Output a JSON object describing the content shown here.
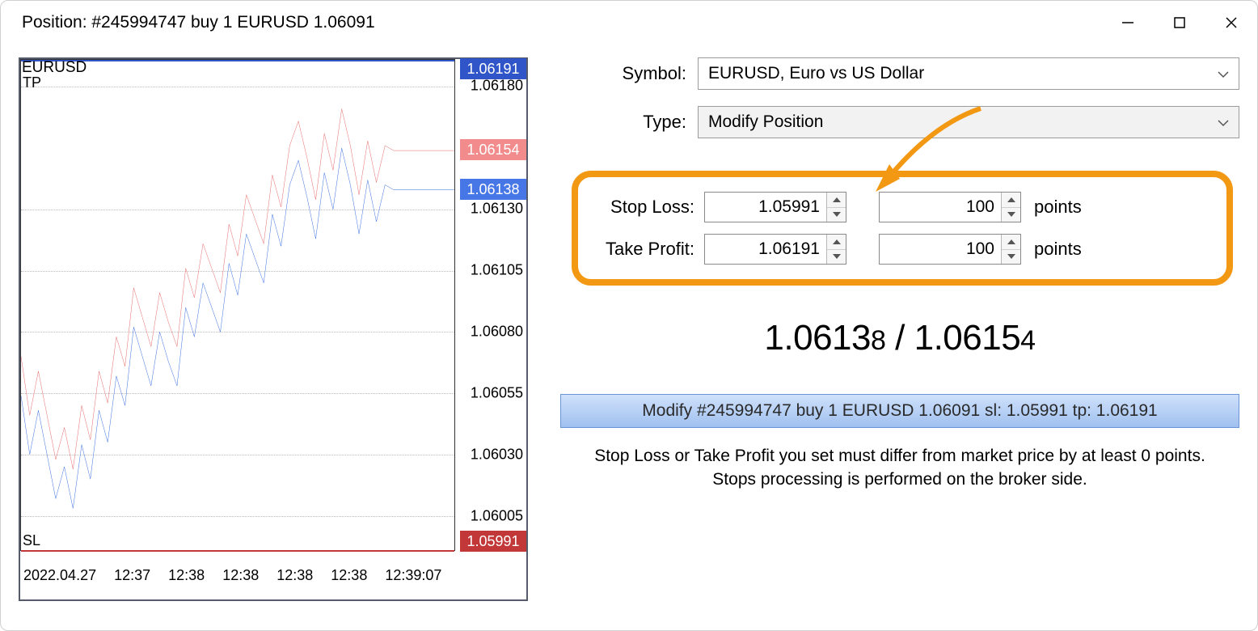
{
  "window": {
    "title": "Position: #245994747 buy 1 EURUSD 1.06091"
  },
  "chart": {
    "symbol": "EURUSD",
    "tp_label": "TP",
    "sl_label": "SL",
    "tp_value": "1.06191",
    "sl_value": "1.05991",
    "bid_value": "1.06138",
    "ask_value": "1.06154",
    "tp_color": "#2f55c9",
    "sl_color": "#c23838",
    "bid_color": "#4776e6",
    "ask_color": "#f28c8c",
    "grid_color": "#bcbcbc",
    "border_color": "#333333",
    "background_color": "#ffffff",
    "y_min": 1.05991,
    "y_max": 1.06191,
    "y_ticks": [
      1.0618,
      1.0613,
      1.06105,
      1.0608,
      1.06055,
      1.0603,
      1.06005
    ],
    "y_tick_labels": [
      "1.06180",
      "1.06130",
      "1.06105",
      "1.06080",
      "1.06055",
      "1.06030",
      "1.06005"
    ],
    "x_labels": [
      "2022.04.27",
      "12:37",
      "12:38",
      "12:38",
      "12:38",
      "12:38",
      "12:39:07"
    ],
    "bid_series": [
      [
        0,
        1.06054
      ],
      [
        0.02,
        1.0603
      ],
      [
        0.04,
        1.06048
      ],
      [
        0.06,
        1.0603
      ],
      [
        0.08,
        1.06012
      ],
      [
        0.1,
        1.06025
      ],
      [
        0.12,
        1.06008
      ],
      [
        0.14,
        1.06034
      ],
      [
        0.16,
        1.0602
      ],
      [
        0.18,
        1.06048
      ],
      [
        0.2,
        1.06035
      ],
      [
        0.22,
        1.06062
      ],
      [
        0.24,
        1.0605
      ],
      [
        0.26,
        1.06082
      ],
      [
        0.28,
        1.0607
      ],
      [
        0.3,
        1.06058
      ],
      [
        0.32,
        1.0608
      ],
      [
        0.34,
        1.06068
      ],
      [
        0.36,
        1.06058
      ],
      [
        0.38,
        1.0609
      ],
      [
        0.4,
        1.06078
      ],
      [
        0.42,
        1.061
      ],
      [
        0.44,
        1.0609
      ],
      [
        0.46,
        1.0608
      ],
      [
        0.48,
        1.06108
      ],
      [
        0.5,
        1.06095
      ],
      [
        0.52,
        1.0612
      ],
      [
        0.54,
        1.0611
      ],
      [
        0.56,
        1.061
      ],
      [
        0.58,
        1.06128
      ],
      [
        0.6,
        1.06115
      ],
      [
        0.62,
        1.0614
      ],
      [
        0.64,
        1.0615
      ],
      [
        0.66,
        1.06135
      ],
      [
        0.68,
        1.06118
      ],
      [
        0.7,
        1.06145
      ],
      [
        0.72,
        1.0613
      ],
      [
        0.74,
        1.06155
      ],
      [
        0.76,
        1.0614
      ],
      [
        0.78,
        1.0612
      ],
      [
        0.8,
        1.06142
      ],
      [
        0.82,
        1.06125
      ],
      [
        0.84,
        1.0614
      ],
      [
        0.86,
        1.06138
      ],
      [
        1.0,
        1.06138
      ]
    ],
    "ask_series": [
      [
        0,
        1.0607
      ],
      [
        0.02,
        1.06046
      ],
      [
        0.04,
        1.06064
      ],
      [
        0.06,
        1.06046
      ],
      [
        0.08,
        1.06028
      ],
      [
        0.1,
        1.06041
      ],
      [
        0.12,
        1.06024
      ],
      [
        0.14,
        1.0605
      ],
      [
        0.16,
        1.06036
      ],
      [
        0.18,
        1.06064
      ],
      [
        0.2,
        1.06051
      ],
      [
        0.22,
        1.06078
      ],
      [
        0.24,
        1.06066
      ],
      [
        0.26,
        1.06098
      ],
      [
        0.28,
        1.06086
      ],
      [
        0.3,
        1.06074
      ],
      [
        0.32,
        1.06096
      ],
      [
        0.34,
        1.06084
      ],
      [
        0.36,
        1.06074
      ],
      [
        0.38,
        1.06106
      ],
      [
        0.4,
        1.06094
      ],
      [
        0.42,
        1.06116
      ],
      [
        0.44,
        1.06106
      ],
      [
        0.46,
        1.06096
      ],
      [
        0.48,
        1.06124
      ],
      [
        0.5,
        1.06111
      ],
      [
        0.52,
        1.06136
      ],
      [
        0.54,
        1.06126
      ],
      [
        0.56,
        1.06116
      ],
      [
        0.58,
        1.06144
      ],
      [
        0.6,
        1.06131
      ],
      [
        0.62,
        1.06156
      ],
      [
        0.64,
        1.06166
      ],
      [
        0.66,
        1.06151
      ],
      [
        0.68,
        1.06134
      ],
      [
        0.7,
        1.06161
      ],
      [
        0.72,
        1.06146
      ],
      [
        0.74,
        1.06171
      ],
      [
        0.76,
        1.06156
      ],
      [
        0.78,
        1.06136
      ],
      [
        0.8,
        1.06158
      ],
      [
        0.82,
        1.06141
      ],
      [
        0.84,
        1.06156
      ],
      [
        0.86,
        1.06154
      ],
      [
        1.0,
        1.06154
      ]
    ]
  },
  "form": {
    "symbol_label": "Symbol:",
    "symbol_value": "EURUSD, Euro vs US Dollar",
    "type_label": "Type:",
    "type_value": "Modify Position",
    "sl_label": "Stop Loss:",
    "sl_value": "1.05991",
    "sl_points": "100",
    "tp_label": "Take Profit:",
    "tp_value": "1.06191",
    "tp_points": "100",
    "points_unit": "points",
    "highlight_color": "#f29813",
    "arrow_color": "#f29813"
  },
  "price_display": {
    "bid_main": "1.0613",
    "bid_last": "8",
    "ask_main": "1.0615",
    "ask_last": "4",
    "sep": " / "
  },
  "modify_button": "Modify #245994747 buy 1 EURUSD 1.06091 sl: 1.05991 tp: 1.06191",
  "note_line1": "Stop Loss or Take Profit you set must differ from market price by at least 0 points.",
  "note_line2": "Stops processing is performed on the broker side."
}
